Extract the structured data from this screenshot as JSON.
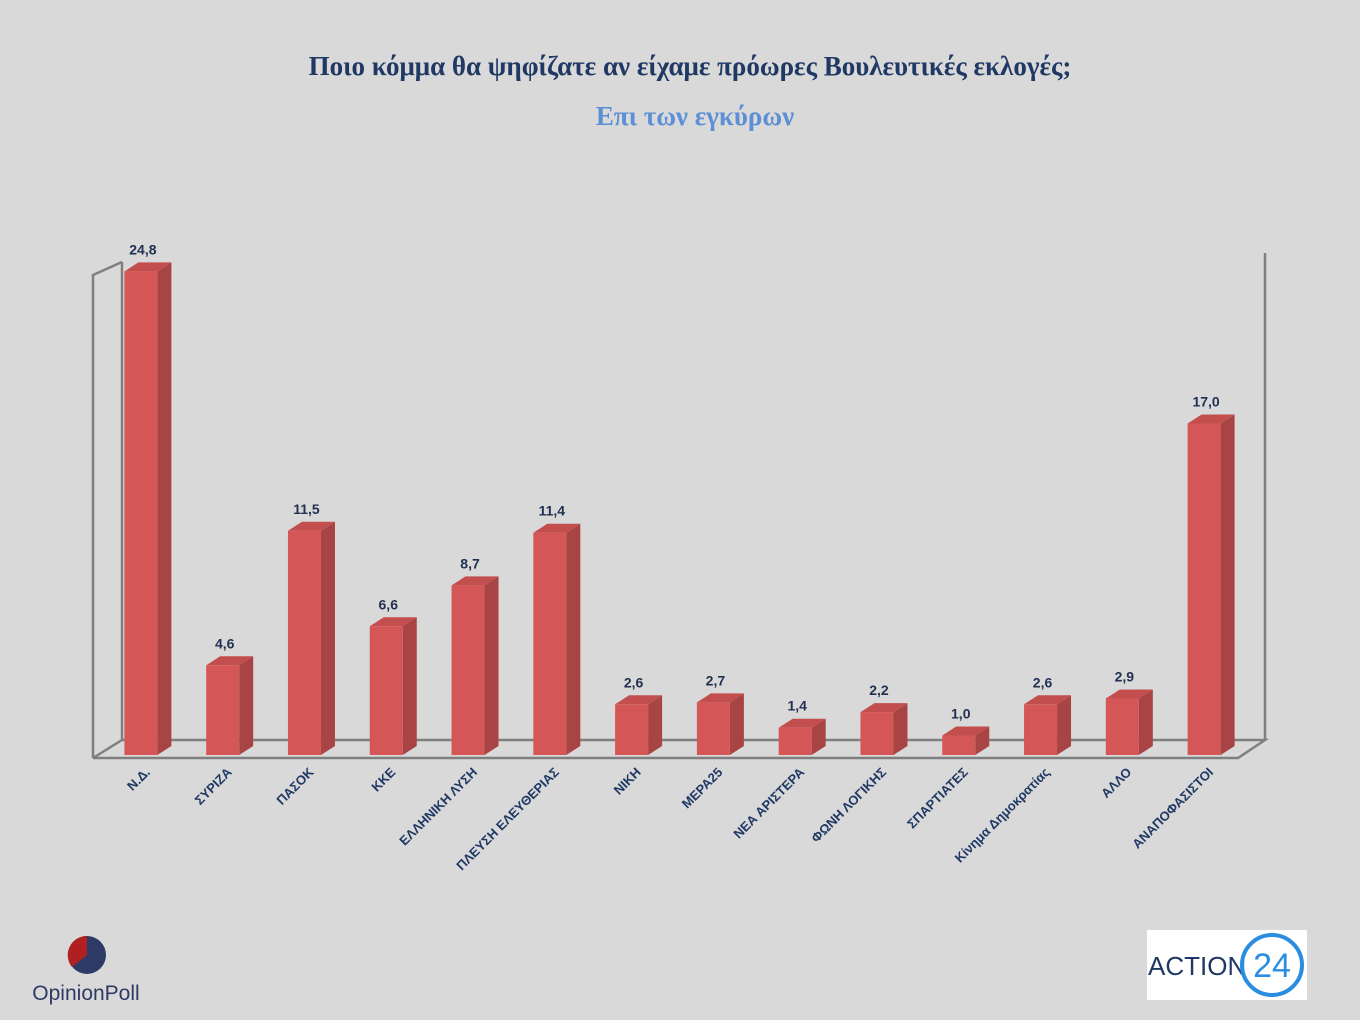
{
  "chart_data": {
    "type": "bar3d",
    "title": "Ποιο κόμμα θα ψηφίζατε αν είχαμε πρόωρες Βουλευτικές εκλογές;",
    "subtitle": "Επι των εγκύρων",
    "categories": [
      "Ν.Δ.",
      "ΣΥΡΙΖΑ",
      "ΠΑΣΟΚ",
      "ΚΚΕ",
      "ΕΛΛΗΝΙΚΗ ΛΥΣΗ",
      "ΠΛΕΥΣΗ ΕΛΕΥΘΕΡΙΑΣ",
      "ΝΙΚΗ",
      "ΜΕΡΑ25",
      "ΝΕΑ ΑΡΙΣΤΕΡΑ",
      "ΦΩΝΗ ΛΟΓΙΚΗΣ",
      "ΣΠΑΡΤΙΑΤΕΣ",
      "Κίνημα Δημοκρατίας",
      "ΑΛΛΟ",
      "ΑΝΑΠΟΦΑΣΙΣΤΟΙ"
    ],
    "values": [
      24.8,
      4.6,
      11.5,
      6.6,
      8.7,
      11.4,
      2.6,
      2.7,
      1.4,
      2.2,
      1.0,
      2.6,
      2.9,
      17.0
    ],
    "value_labels": [
      "24,8",
      "4,6",
      "11,5",
      "6,6",
      "8,7",
      "11,4",
      "2,6",
      "2,7",
      "1,4",
      "2,2",
      "1,0",
      "2,6",
      "2,9",
      "17,0"
    ],
    "color": "#d55656",
    "ylim": [
      0,
      25
    ]
  },
  "logos": {
    "left": "OpinionPoll",
    "right_word": "ACTION",
    "right_number": "24"
  }
}
